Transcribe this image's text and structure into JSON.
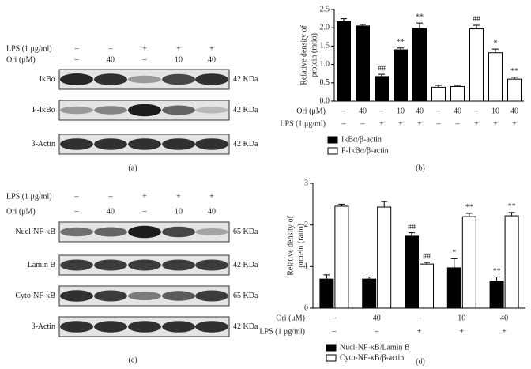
{
  "blots": [
    {
      "label": "(a)",
      "header": [
        {
          "name": "LPS (1 μg/ml)",
          "marks": [
            "–",
            "–",
            "+",
            "+",
            "+"
          ]
        },
        {
          "name": "Ori (μM)",
          "marks": [
            "–",
            "40",
            "–",
            "10",
            "40"
          ]
        }
      ],
      "rows": [
        {
          "name": "IκBα",
          "kda": "42 KDa"
        },
        {
          "name": "P-IκBα",
          "kda": "42 KDa"
        },
        {
          "name": "β-Actin",
          "kda": "42 KDa"
        }
      ]
    },
    {
      "label": "(c)",
      "header": [
        {
          "name": "LPS (1 μg/ml)",
          "marks": [
            "–",
            "–",
            "+",
            "+",
            "+"
          ]
        },
        {
          "name": "Ori (μM)",
          "marks": [
            "–",
            "40",
            "–",
            "10",
            "40"
          ]
        }
      ],
      "rows": [
        {
          "name": "Nucl-NF-κB",
          "kda": "65 KDa"
        },
        {
          "name": "Lamin B",
          "kda": "42 KDa"
        },
        {
          "name": "Cyto-NF-κB",
          "kda": "65 KDa"
        },
        {
          "name": "β-Actin",
          "kda": "42 KDa"
        }
      ]
    }
  ],
  "chart_data": [
    {
      "type": "bar",
      "label": "(b)",
      "ylabel": [
        "Relative density of",
        "protein (ratio)"
      ],
      "row_labels": [
        "Ori (μM)",
        "LPS (1 μg/ml)"
      ],
      "categories": [
        "–",
        "40",
        "–",
        "10",
        "40",
        "–",
        "40",
        "–",
        "10",
        "40"
      ],
      "lps": [
        "–",
        "–",
        "+",
        "+",
        "+",
        "–",
        "–",
        "+",
        "+",
        "+"
      ],
      "ylim": [
        0,
        2.5
      ],
      "yticks": [
        {
          "value": 0,
          "label": "0.0"
        },
        0.5,
        {
          "value": 1,
          "label": "1.0"
        },
        1.5,
        {
          "value": 2,
          "label": "2.0"
        },
        2.5
      ],
      "series": [
        {
          "name": "IκBα/β-actin",
          "color": "#000000",
          "values": [
            2.17,
            2.05,
            0.67,
            1.4,
            1.98,
            null,
            null,
            null,
            null,
            null
          ],
          "errors": [
            0.08,
            0.04,
            0.06,
            0.05,
            0.15,
            null,
            null,
            null,
            null,
            null
          ],
          "annotations": [
            null,
            null,
            "##",
            "**",
            "**",
            null,
            null,
            null,
            null,
            null
          ]
        },
        {
          "name": "P-IκBα/β-actin",
          "color": "#ffffff",
          "values": [
            null,
            null,
            null,
            null,
            null,
            0.38,
            0.4,
            1.97,
            1.32,
            0.6
          ],
          "errors": [
            null,
            null,
            null,
            null,
            null,
            0.05,
            0.03,
            0.1,
            0.1,
            0.05
          ],
          "annotations": [
            null,
            null,
            null,
            null,
            null,
            null,
            null,
            "##",
            "*",
            "**"
          ]
        }
      ]
    },
    {
      "type": "bar",
      "label": "(d)",
      "ylabel": [
        "Relative density of",
        "protein (ratio)"
      ],
      "row_labels": [
        "Ori (μM)",
        "LPS (1 μg/ml)"
      ],
      "categories": [
        "–",
        "40",
        "–",
        "10",
        "40"
      ],
      "lps": [
        "–",
        "–",
        "+",
        "+",
        "+"
      ],
      "ylim": [
        0,
        3
      ],
      "yticks": [
        0,
        1,
        2,
        3
      ],
      "series": [
        {
          "name": "Nucl-NF-κB/Lamin B",
          "color": "#000000",
          "values": [
            0.7,
            0.7,
            1.73,
            0.97,
            0.65
          ],
          "errors": [
            0.1,
            0.05,
            0.08,
            0.22,
            0.1
          ],
          "annotations": [
            null,
            null,
            "##",
            "*",
            "**"
          ]
        },
        {
          "name": "Cyto-NF-κB/β-actin",
          "color": "#ffffff",
          "values": [
            2.45,
            2.43,
            1.06,
            2.2,
            2.22
          ],
          "errors": [
            0.05,
            0.13,
            0.04,
            0.08,
            0.08
          ],
          "annotations": [
            null,
            null,
            "##",
            "**",
            "**"
          ]
        }
      ]
    }
  ]
}
